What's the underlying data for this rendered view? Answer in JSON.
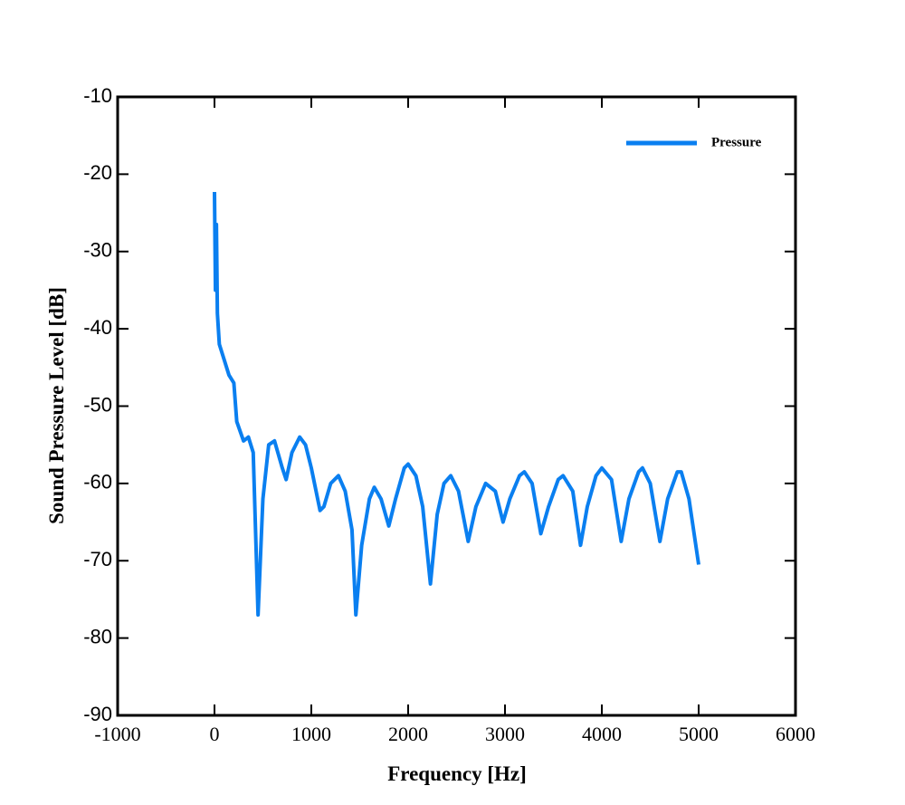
{
  "chart_data": {
    "type": "line",
    "xlabel": "Frequency [Hz]",
    "ylabel": "Sound Pressure Level [dB]",
    "x": [
      0,
      10,
      20,
      30,
      50,
      100,
      150,
      200,
      230,
      300,
      350,
      400,
      450,
      500,
      560,
      620,
      700,
      740,
      800,
      880,
      940,
      1000,
      1090,
      1130,
      1200,
      1280,
      1350,
      1420,
      1460,
      1520,
      1600,
      1650,
      1720,
      1800,
      1870,
      1960,
      2000,
      2080,
      2150,
      2230,
      2300,
      2370,
      2440,
      2520,
      2620,
      2700,
      2800,
      2900,
      2980,
      3050,
      3150,
      3200,
      3280,
      3370,
      3450,
      3550,
      3600,
      3700,
      3780,
      3850,
      3940,
      4000,
      4100,
      4200,
      4280,
      4380,
      4420,
      4500,
      4600,
      4680,
      4780,
      4820,
      4900,
      5000
    ],
    "series": [
      {
        "name": "Pressure",
        "color": "#0a7ff0",
        "values": [
          -22.3,
          -35,
          -26.5,
          -38,
          -42,
          -44,
          -46,
          -47,
          -52,
          -54.5,
          -54,
          -56,
          -77,
          -62,
          -55,
          -54.5,
          -58,
          -59.5,
          -56,
          -54,
          -55,
          -58,
          -63.5,
          -63,
          -60,
          -59,
          -61,
          -66,
          -77,
          -68,
          -62,
          -60.5,
          -62,
          -65.5,
          -62,
          -58,
          -57.5,
          -59,
          -63,
          -73,
          -64,
          -60,
          -59,
          -61,
          -67.5,
          -63,
          -60,
          -61,
          -65,
          -62,
          -59,
          -58.5,
          -60,
          -66.5,
          -63,
          -59.5,
          -59,
          -61,
          -68,
          -63,
          -59,
          -58,
          -59.5,
          -67.5,
          -62,
          -58.5,
          -58,
          -60,
          -67.5,
          -62,
          -58.5,
          -58.5,
          -62,
          -70.5
        ]
      }
    ],
    "xlim": [
      -1000,
      6000
    ],
    "xticks": [
      -1000,
      0,
      1000,
      2000,
      3000,
      4000,
      5000,
      6000
    ],
    "ylim": [
      -90,
      -10
    ],
    "yticks": [
      -90,
      -80,
      -70,
      -60,
      -50,
      -40,
      -30,
      -20,
      -10
    ],
    "legend": "upper right"
  }
}
